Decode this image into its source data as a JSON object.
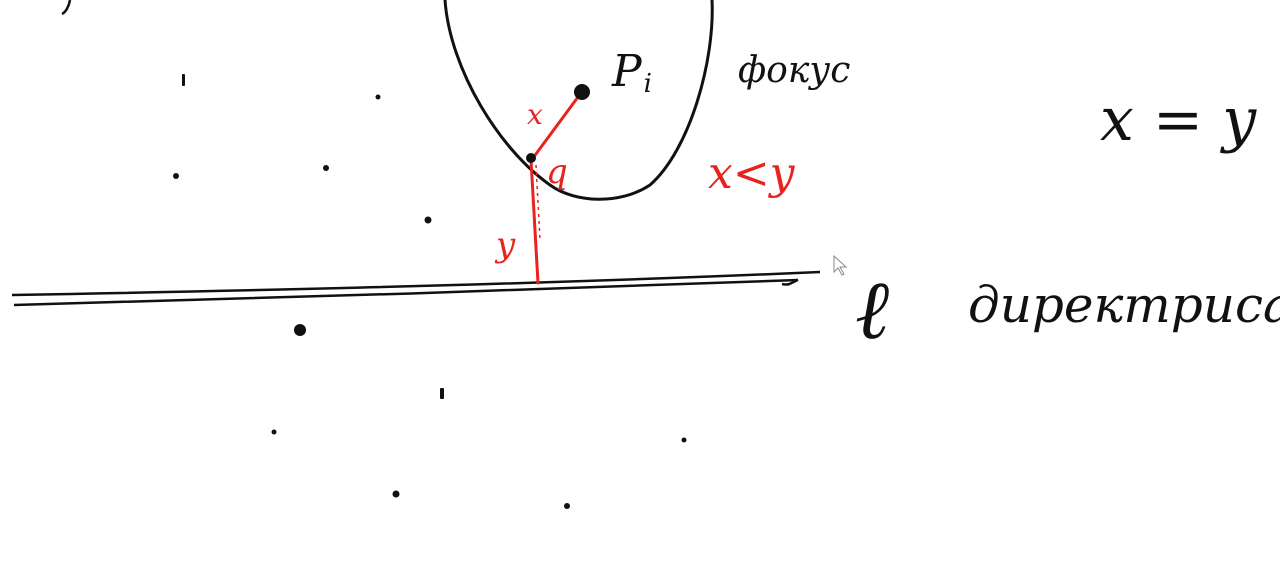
{
  "labels": {
    "point": "P",
    "point_subscript": "i",
    "focus": "фокус",
    "x_seg": "x",
    "q_point": "q",
    "y_seg": "y",
    "ineq": "x<y",
    "eq": "x = y",
    "line": "ℓ",
    "directrix": "директриса"
  },
  "colors": {
    "ink": "#111111",
    "red": "#e8231f"
  }
}
